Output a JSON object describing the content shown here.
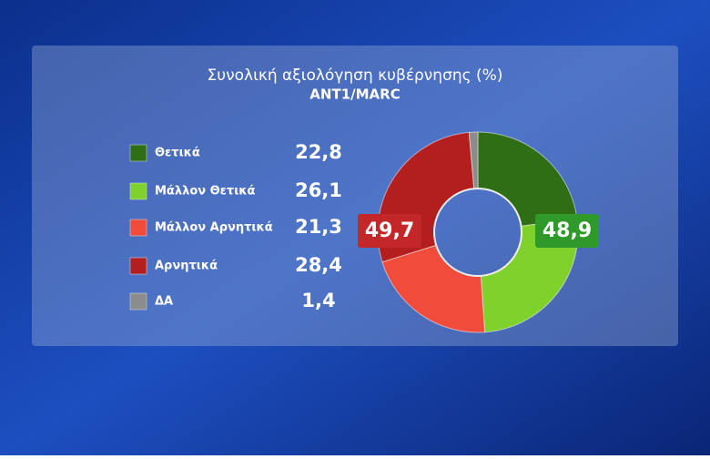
{
  "chart_data": {
    "type": "pie",
    "title": "Συνολική αξιολόγηση κυβέρνησης (%)",
    "subtitle": "ANT1/MARC",
    "categories": [
      "Θετικά",
      "Μάλλον Θετικά",
      "Μάλλον Αρνητικά",
      "Αρνητικά",
      "ΔΑ"
    ],
    "values": [
      22.8,
      26.1,
      21.3,
      28.4,
      1.4
    ],
    "value_labels": [
      "22,8",
      "26,1",
      "21,3",
      "28,4",
      "1,4"
    ],
    "colors": [
      "#2f6e14",
      "#7fd22c",
      "#f04b3b",
      "#b31f1f",
      "#8c8c8c"
    ],
    "annotations": [
      {
        "value": 49.7,
        "label": "49,7",
        "color": "#c3272a"
      },
      {
        "value": 48.9,
        "label": "48,9",
        "color": "#2f9a2a"
      }
    ]
  }
}
